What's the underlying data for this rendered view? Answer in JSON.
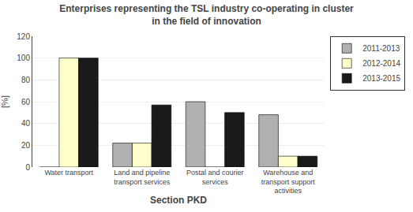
{
  "chart_data": {
    "type": "bar",
    "title": "Enterprises representing the TSL industry co-operating in cluster\nin the field of innovation",
    "categories": [
      "Water transport",
      "Land and pipeline\ntransport services",
      "Postal and courier\nservices",
      "Warehouse and\ntransport support\nactivities"
    ],
    "series": [
      {
        "name": "2011-2013",
        "color": "#b0b0b0",
        "values": [
          0,
          22,
          60,
          48
        ]
      },
      {
        "name": "2012-2014",
        "color": "#ffffcc",
        "values": [
          100,
          22,
          0,
          10
        ]
      },
      {
        "name": "2013-2015",
        "color": "#1a1a1a",
        "values": [
          100,
          57,
          50,
          10
        ]
      }
    ],
    "xlabel": "Section PKD",
    "ylabel": "[%]",
    "ylim": [
      0,
      120
    ],
    "yticks": [
      0,
      20,
      40,
      60,
      80,
      100,
      120
    ],
    "grid": true,
    "legend": "upper right"
  }
}
